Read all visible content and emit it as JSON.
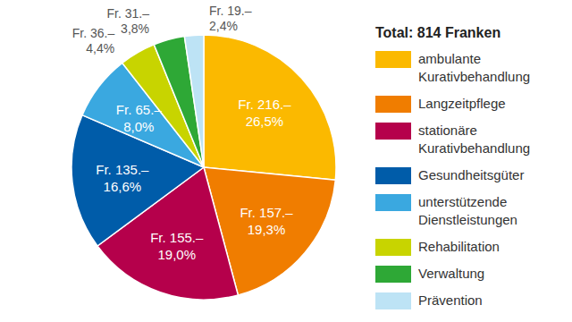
{
  "chart_data": {
    "type": "pie",
    "legend_title": "Total: 814 Franken",
    "categories": [
      "ambulante Kurativbehandlung",
      "Langzeitpflege",
      "stationäre Kurativbehandlung",
      "Gesundheitsgüter",
      "unterstützende Dienstleistungen",
      "Rehabilitation",
      "Verwaltung",
      "Prävention"
    ],
    "values": [
      216,
      157,
      155,
      135,
      65,
      36,
      31,
      19
    ],
    "value_labels": [
      "Fr. 216.–",
      "Fr. 157.–",
      "Fr. 155.–",
      "Fr. 135.–",
      "Fr. 65.–",
      "Fr. 36.–",
      "Fr. 31.–",
      "Fr. 19.–"
    ],
    "percentages": [
      26.5,
      19.3,
      19.0,
      16.6,
      8.0,
      4.4,
      3.8,
      2.4
    ],
    "percentage_labels": [
      "26,5%",
      "19,3%",
      "19,0%",
      "16,6%",
      "8,0%",
      "4,4%",
      "3,8%",
      "2,4%"
    ],
    "colors": [
      "#fbb900",
      "#f07d00",
      "#b5004b",
      "#005ca9",
      "#3aa8e0",
      "#c8d400",
      "#2ea836",
      "#bde3f5"
    ],
    "data_labels": true,
    "legend": "right"
  }
}
